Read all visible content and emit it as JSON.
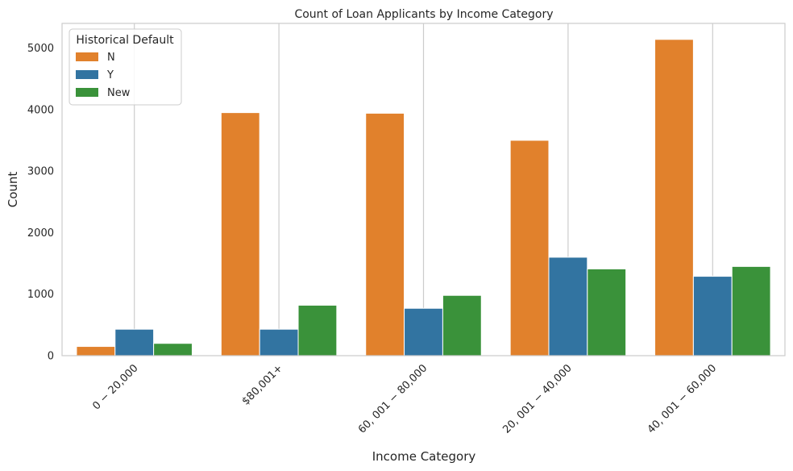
{
  "chart_data": {
    "type": "bar",
    "title": "Count of Loan Applicants by Income Category",
    "xlabel": "Income Category",
    "ylabel": "Count",
    "categories": [
      "$0-$20,000",
      "$80,001+",
      "$60,001-$80,000",
      "$20,001-$40,000",
      "$40,001-$60,000"
    ],
    "category_tick_labels": [
      "0 − 20,000",
      "$80,001+",
      "60, 001 − 80,000",
      "20, 001 − 40,000",
      "40, 001 − 60,000"
    ],
    "series": [
      {
        "name": "N",
        "values": [
          150,
          3950,
          3940,
          3500,
          5140
        ],
        "color": "#e1812c"
      },
      {
        "name": "Y",
        "values": [
          430,
          430,
          770,
          1600,
          1290
        ],
        "color": "#3274a1"
      },
      {
        "name": "New",
        "values": [
          200,
          820,
          980,
          1410,
          1450
        ],
        "color": "#3a923a"
      }
    ],
    "ylim": [
      0,
      5400
    ],
    "yticks": [
      0,
      1000,
      2000,
      3000,
      4000,
      5000
    ],
    "grid": "x",
    "legend": {
      "title": "Historical Default",
      "placement": "top-left"
    }
  }
}
